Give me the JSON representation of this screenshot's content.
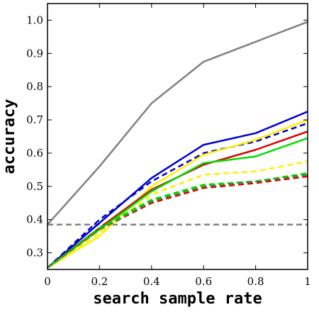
{
  "chart_data": {
    "type": "line",
    "title": "",
    "xlabel": "search sample rate",
    "ylabel": "accuracy",
    "xlim": [
      0,
      1
    ],
    "ylim": [
      0.25,
      1.05
    ],
    "x": [
      0,
      0.2,
      0.4,
      0.6,
      0.8,
      1
    ],
    "xticks": [
      "0",
      "0.2",
      "0.4",
      "0.6",
      "0.8",
      "1"
    ],
    "yticks": [
      {
        "value": 0.3,
        "label": "0.3"
      },
      {
        "value": 0.4,
        "label": "0.4"
      },
      {
        "value": 0.5,
        "label": "0.5"
      },
      {
        "value": 0.6,
        "label": "0.6"
      },
      {
        "value": 0.7,
        "label": "0.7"
      },
      {
        "value": 0.8,
        "label": "0.8"
      },
      {
        "value": 0.9,
        "label": "0.9"
      },
      {
        "value": 1.0,
        "label": "1.0"
      }
    ],
    "grid": false,
    "legend": "none",
    "series": [
      {
        "color": "#808080",
        "style": "solid",
        "values": [
          0.385,
          0.56,
          0.75,
          0.875,
          0.935,
          0.995
        ]
      },
      {
        "color": "#808080",
        "style": "dashed",
        "values": [
          0.385,
          0.385,
          0.385,
          0.385,
          0.385,
          0.385
        ]
      },
      {
        "color": "#0000cc",
        "style": "solid",
        "values": [
          0.255,
          0.39,
          0.525,
          0.625,
          0.66,
          0.725
        ]
      },
      {
        "color": "#0000cc",
        "style": "dashed",
        "values": [
          0.255,
          0.4,
          0.515,
          0.6,
          0.635,
          0.69
        ]
      },
      {
        "color": "#ffee00",
        "style": "solid",
        "values": [
          0.255,
          0.35,
          0.5,
          0.595,
          0.64,
          0.7
        ]
      },
      {
        "color": "#dd0000",
        "style": "solid",
        "values": [
          0.255,
          0.375,
          0.49,
          0.565,
          0.61,
          0.665
        ]
      },
      {
        "color": "#00dd00",
        "style": "solid",
        "values": [
          0.255,
          0.37,
          0.485,
          0.57,
          0.59,
          0.645
        ]
      },
      {
        "color": "#ffee00",
        "style": "dashed",
        "values": [
          0.255,
          0.36,
          0.475,
          0.535,
          0.545,
          0.575
        ]
      },
      {
        "color": "#00dd00",
        "style": "dashed",
        "values": [
          0.255,
          0.375,
          0.46,
          0.505,
          0.515,
          0.54
        ]
      },
      {
        "color": "#dd0000",
        "style": "dashed",
        "values": [
          0.255,
          0.37,
          0.45,
          0.495,
          0.51,
          0.53
        ]
      },
      {
        "color": "#339933",
        "style": "dashed",
        "values": [
          0.255,
          0.37,
          0.455,
          0.5,
          0.515,
          0.535
        ]
      }
    ]
  }
}
